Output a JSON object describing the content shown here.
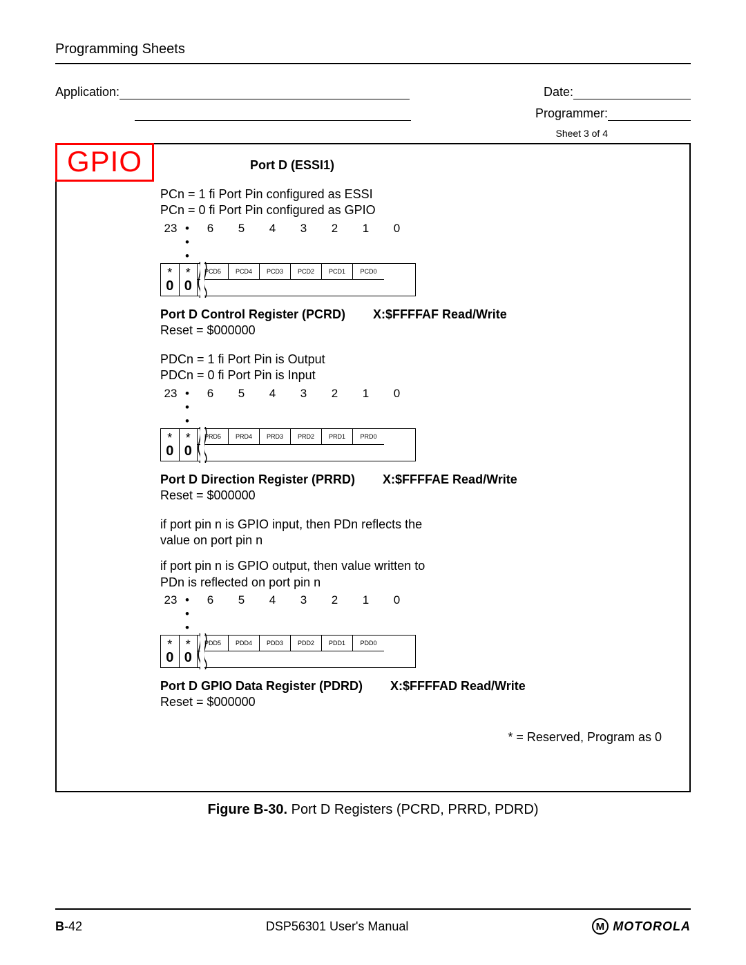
{
  "header": {
    "title": "Programming Sheets"
  },
  "form": {
    "application_label": "Application:",
    "date_label": "Date:",
    "programmer_label": "Programmer:",
    "sheet_info": "Sheet 3 of 4"
  },
  "badge": "GPIO",
  "port_title": "Port D (ESSI1)",
  "registers": [
    {
      "desc_lines": [
        "PCn = 1 fi  Port Pin configured as ESSI",
        "PCn = 0 fi  Port Pin configured as GPIO"
      ],
      "bit_high": "23",
      "bit_dots": "• • •",
      "bit_nums": [
        "6",
        "5",
        "4",
        "3",
        "2",
        "1",
        "0"
      ],
      "bits": [
        "PCD5",
        "PCD4",
        "PCD3",
        "PCD2",
        "PCD1",
        "PCD0"
      ],
      "name": "Port D Control Register (PCRD)",
      "addr": "X:$FFFFAF Read/Write",
      "reset": "Reset = $000000"
    },
    {
      "desc_lines": [
        "PDCn = 1 fi  Port Pin is Output",
        "PDCn = 0 fi  Port Pin is Input"
      ],
      "bit_high": "23",
      "bit_dots": "• • •",
      "bit_nums": [
        "6",
        "5",
        "4",
        "3",
        "2",
        "1",
        "0"
      ],
      "bits": [
        "PRD5",
        "PRD4",
        "PRD3",
        "PRD2",
        "PRD1",
        "PRD0"
      ],
      "name": "Port D Direction Register (PRRD)",
      "addr": "X:$FFFFAE Read/Write",
      "reset": "Reset = $000000"
    },
    {
      "desc_lines": [
        "if port pin n is GPIO input, then PDn reflects the",
        "value on port pin n",
        "",
        "if port pin n is GPIO output, then value written to",
        "PDn is reflected on port pin n"
      ],
      "bit_high": "23",
      "bit_dots": "• • •",
      "bit_nums": [
        "6",
        "5",
        "4",
        "3",
        "2",
        "1",
        "0"
      ],
      "bits": [
        "PDD5",
        "PDD4",
        "PDD3",
        "PDD2",
        "PDD1",
        "PDD0"
      ],
      "name": "Port D GPIO Data Register (PDRD)",
      "addr": "X:$FFFFAD Read/Write",
      "reset": "Reset = $000000"
    }
  ],
  "reserved": {
    "star": "*",
    "zero": "0"
  },
  "legend": "* = Reserved, Program as 0",
  "figure": {
    "bold": "Figure B-30.",
    "rest": " Port D Registers (PCRD, PRRD, PDRD)"
  },
  "footer": {
    "page_b": "B",
    "page_rest": "-42",
    "center": "DSP56301 User's Manual",
    "logo_letter": "M",
    "logo_text": "MOTOROLA"
  },
  "style": {
    "line_app_w": 420,
    "line_date_w": 170,
    "line_mid_w": 380,
    "line_prog_w": 120
  }
}
